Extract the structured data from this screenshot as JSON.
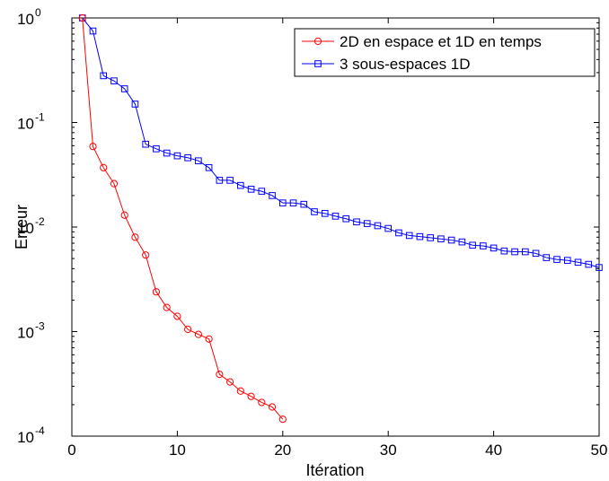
{
  "chart_data": {
    "type": "line",
    "xlabel": "Itération",
    "ylabel": "Erreur",
    "xlim": [
      0,
      50
    ],
    "ylim": [
      0.0001,
      1
    ],
    "yscale": "log",
    "grid": false,
    "legend_position": "top-right",
    "x_ticks": [
      "0",
      "10",
      "20",
      "30",
      "40",
      "50"
    ],
    "y_ticks": [
      {
        "base": "10",
        "exp": "-4"
      },
      {
        "base": "10",
        "exp": "-3"
      },
      {
        "base": "10",
        "exp": "-2"
      },
      {
        "base": "10",
        "exp": "-1"
      },
      {
        "base": "10",
        "exp": "0"
      }
    ],
    "series": [
      {
        "name": "2D en espace et 1D en temps",
        "color": "#ff0000",
        "marker": "circle",
        "x": [
          1,
          2,
          3,
          4,
          5,
          6,
          7,
          8,
          9,
          10,
          11,
          12,
          13,
          14,
          15,
          16,
          17,
          18,
          19,
          20
        ],
        "y": [
          1.0,
          0.059,
          0.037,
          0.026,
          0.013,
          0.008,
          0.0054,
          0.0024,
          0.0017,
          0.0014,
          0.00105,
          0.00094,
          0.00085,
          0.00039,
          0.00033,
          0.00027,
          0.00024,
          0.00021,
          0.00019,
          0.000145
        ]
      },
      {
        "name": "3 sous-espaces 1D",
        "color": "#0000ff",
        "marker": "square",
        "x": [
          1,
          2,
          3,
          4,
          5,
          6,
          7,
          8,
          9,
          10,
          11,
          12,
          13,
          14,
          15,
          16,
          17,
          18,
          19,
          20,
          21,
          22,
          23,
          24,
          25,
          26,
          27,
          28,
          29,
          30,
          31,
          32,
          33,
          34,
          35,
          36,
          37,
          38,
          39,
          40,
          41,
          42,
          43,
          44,
          45,
          46,
          47,
          48,
          49,
          50
        ],
        "y": [
          1.0,
          0.75,
          0.28,
          0.25,
          0.21,
          0.15,
          0.062,
          0.056,
          0.051,
          0.048,
          0.046,
          0.043,
          0.037,
          0.028,
          0.028,
          0.025,
          0.023,
          0.022,
          0.02,
          0.017,
          0.017,
          0.0165,
          0.014,
          0.0135,
          0.0127,
          0.012,
          0.0112,
          0.0108,
          0.0103,
          0.0097,
          0.0088,
          0.0083,
          0.0081,
          0.0079,
          0.0077,
          0.0075,
          0.0072,
          0.0067,
          0.0066,
          0.0063,
          0.0059,
          0.0058,
          0.0058,
          0.0056,
          0.0051,
          0.0049,
          0.0048,
          0.0046,
          0.0044,
          0.0041
        ]
      }
    ]
  }
}
